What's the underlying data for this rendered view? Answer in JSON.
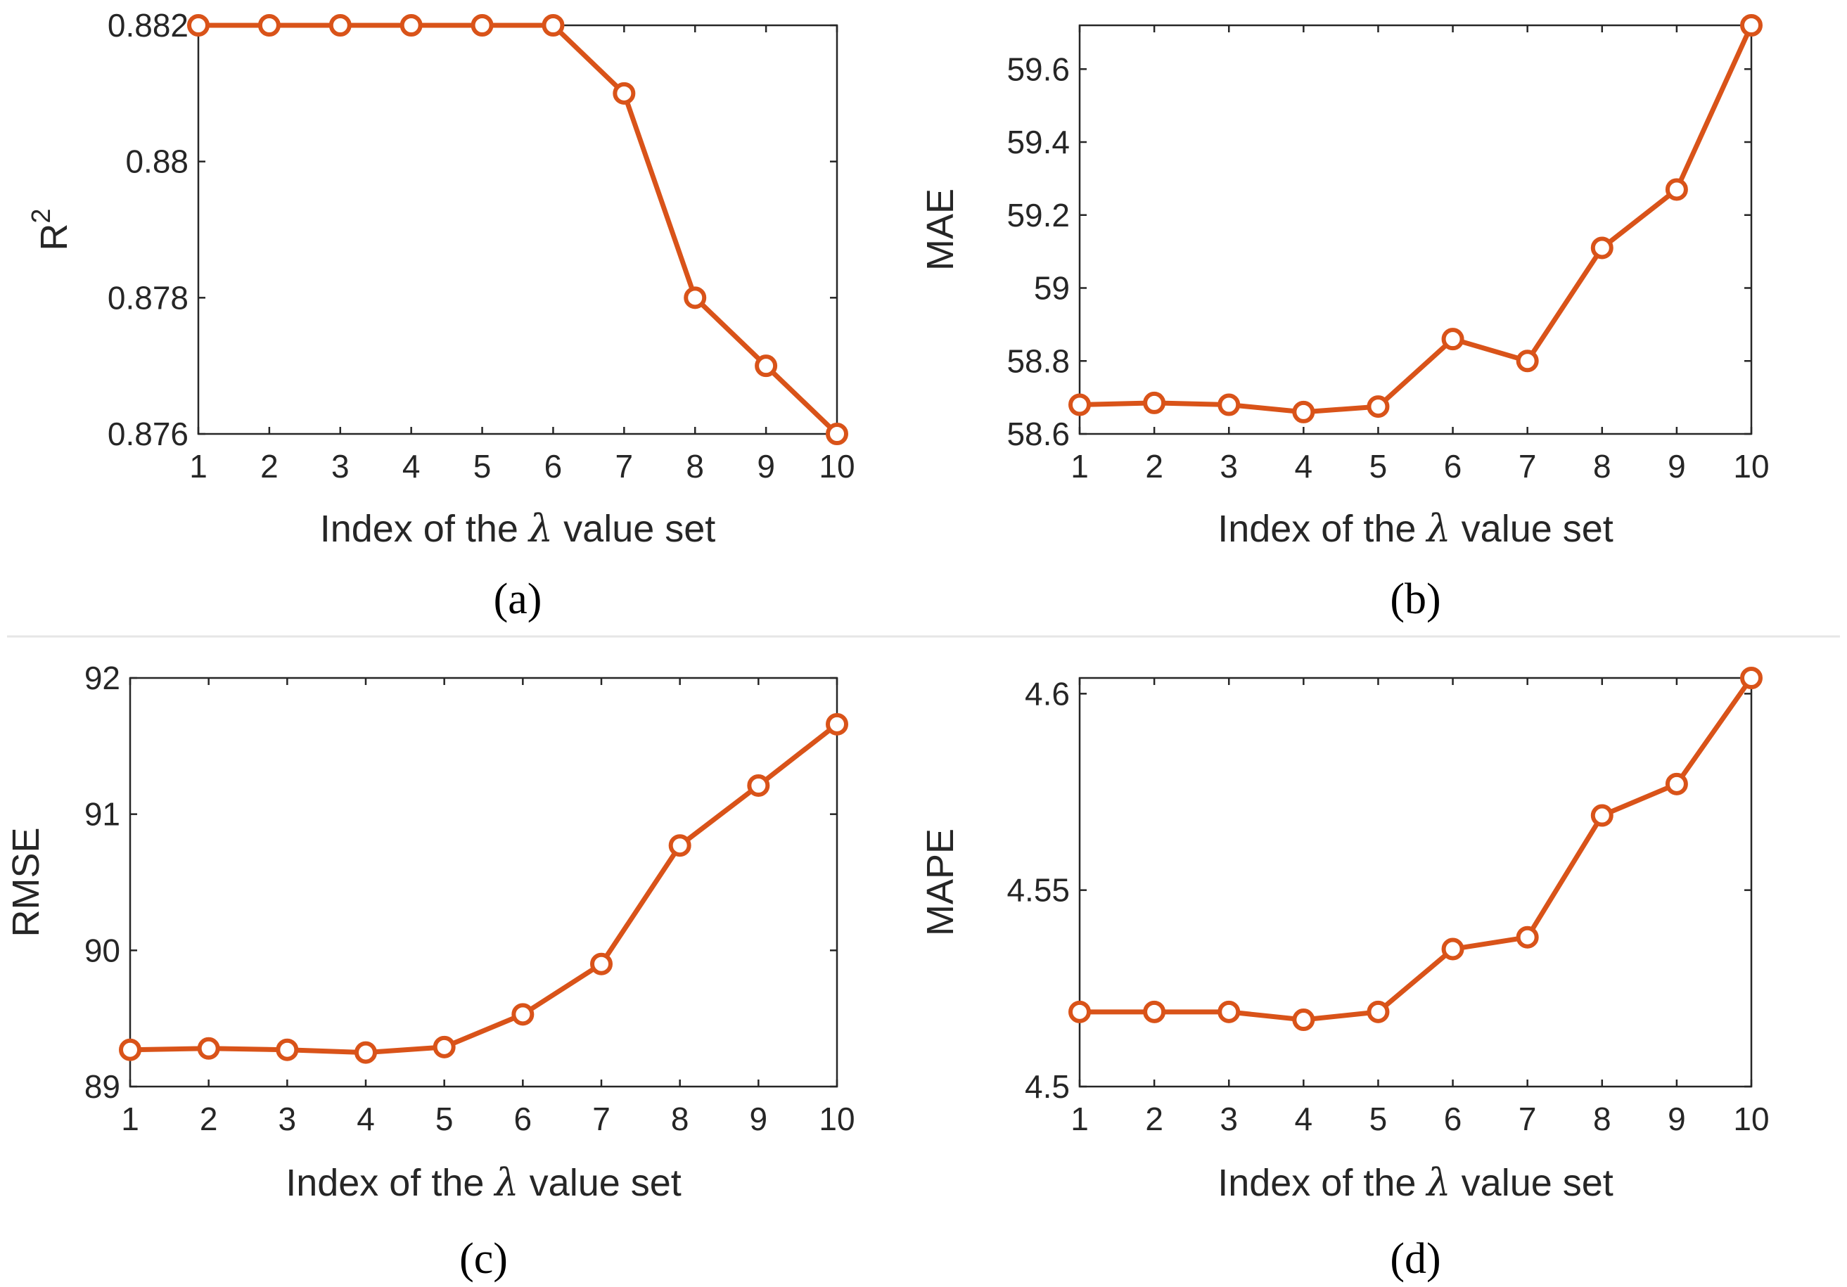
{
  "style": {
    "line_color": "#d95319",
    "axis_color": "#262626",
    "separator_color": "#e6e6e6"
  },
  "chart_data": [
    {
      "id": "a",
      "type": "line",
      "caption": "(a)",
      "xlabel": {
        "before": "Index of the ",
        "symbol": "λ",
        "after": " value set"
      },
      "ylabel": "R",
      "ylabel_superscript": "2",
      "x": [
        1,
        2,
        3,
        4,
        5,
        6,
        7,
        8,
        9,
        10
      ],
      "values": [
        0.882,
        0.882,
        0.882,
        0.882,
        0.882,
        0.882,
        0.881,
        0.878,
        0.877,
        0.876
      ],
      "xlim": [
        1,
        10
      ],
      "ylim": [
        0.876,
        0.882
      ],
      "xticks": [
        "1",
        "2",
        "3",
        "4",
        "5",
        "6",
        "7",
        "8",
        "9",
        "10"
      ],
      "yticks": [
        0.876,
        0.878,
        0.88,
        0.882
      ],
      "ytick_labels": [
        "0.876",
        "0.878",
        "0.88",
        "0.882"
      ]
    },
    {
      "id": "b",
      "type": "line",
      "caption": "(b)",
      "xlabel": {
        "before": "Index of the ",
        "symbol": "λ",
        "after": " value set"
      },
      "ylabel": "MAE",
      "x": [
        1,
        2,
        3,
        4,
        5,
        6,
        7,
        8,
        9,
        10
      ],
      "values": [
        58.68,
        58.685,
        58.68,
        58.66,
        58.675,
        58.86,
        58.8,
        59.11,
        59.27,
        59.72
      ],
      "xlim": [
        1,
        10
      ],
      "ylim": [
        58.6,
        59.72
      ],
      "xticks": [
        "1",
        "2",
        "3",
        "4",
        "5",
        "6",
        "7",
        "8",
        "9",
        "10"
      ],
      "yticks": [
        58.6,
        58.8,
        59,
        59.2,
        59.4,
        59.6
      ],
      "ytick_labels": [
        "58.6",
        "58.8",
        "59",
        "59.2",
        "59.4",
        "59.6"
      ]
    },
    {
      "id": "c",
      "type": "line",
      "caption": "(c)",
      "xlabel": {
        "before": "Index of the ",
        "symbol": "λ",
        "after": " value set"
      },
      "ylabel": "RMSE",
      "x": [
        1,
        2,
        3,
        4,
        5,
        6,
        7,
        8,
        9,
        10
      ],
      "values": [
        89.27,
        89.28,
        89.27,
        89.25,
        89.29,
        89.53,
        89.9,
        90.77,
        91.21,
        91.66
      ],
      "xlim": [
        1,
        10
      ],
      "ylim": [
        89,
        92
      ],
      "xticks": [
        "1",
        "2",
        "3",
        "4",
        "5",
        "6",
        "7",
        "8",
        "9",
        "10"
      ],
      "yticks": [
        89,
        90,
        91,
        92
      ],
      "ytick_labels": [
        "89",
        "90",
        "91",
        "92"
      ]
    },
    {
      "id": "d",
      "type": "line",
      "caption": "(d)",
      "xlabel": {
        "before": "Index of the ",
        "symbol": "λ",
        "after": " value set"
      },
      "ylabel": "MAPE",
      "x": [
        1,
        2,
        3,
        4,
        5,
        6,
        7,
        8,
        9,
        10
      ],
      "values": [
        4.519,
        4.519,
        4.519,
        4.517,
        4.519,
        4.535,
        4.538,
        4.569,
        4.577,
        4.604
      ],
      "xlim": [
        1,
        10
      ],
      "ylim": [
        4.5,
        4.604
      ],
      "xticks": [
        "1",
        "2",
        "3",
        "4",
        "5",
        "6",
        "7",
        "8",
        "9",
        "10"
      ],
      "yticks": [
        4.5,
        4.55,
        4.6
      ],
      "ytick_labels": [
        "4.5",
        "4.55",
        "4.6"
      ]
    }
  ]
}
